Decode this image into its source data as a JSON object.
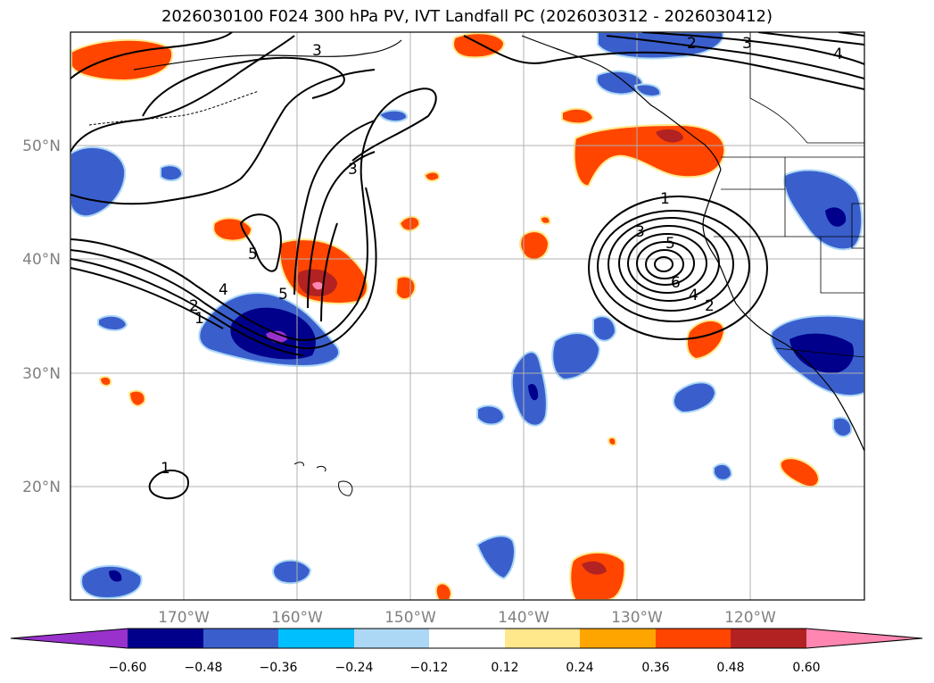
{
  "title": "2026030100 F024 300 hPa PV, IVT Landfall PC (2026030312 - 2026030412)",
  "lat_labels": [
    "50°N",
    "40°N",
    "30°N",
    "20°N"
  ],
  "lon_labels": [
    "170°W",
    "160°W",
    "150°W",
    "140°W",
    "130°W",
    "120°W"
  ],
  "colorbar": {
    "colors": [
      "#9932cc",
      "#00008b",
      "#3a5fcd",
      "#00bfff",
      "#add8f5",
      "#ffffff",
      "#ffe88c",
      "#ffa500",
      "#ff4500",
      "#b22222",
      "#ff86b0"
    ],
    "ticks": [
      "−0.60",
      "−0.48",
      "−0.36",
      "−0.24",
      "−0.12",
      "0.12",
      "0.24",
      "0.36",
      "0.48",
      "0.60"
    ]
  },
  "contour_labels": [
    "1",
    "2",
    "3",
    "4",
    "5",
    "6",
    "1",
    "2",
    "3",
    "4",
    "5",
    "1",
    "2",
    "3",
    "4",
    "3",
    "5"
  ]
}
